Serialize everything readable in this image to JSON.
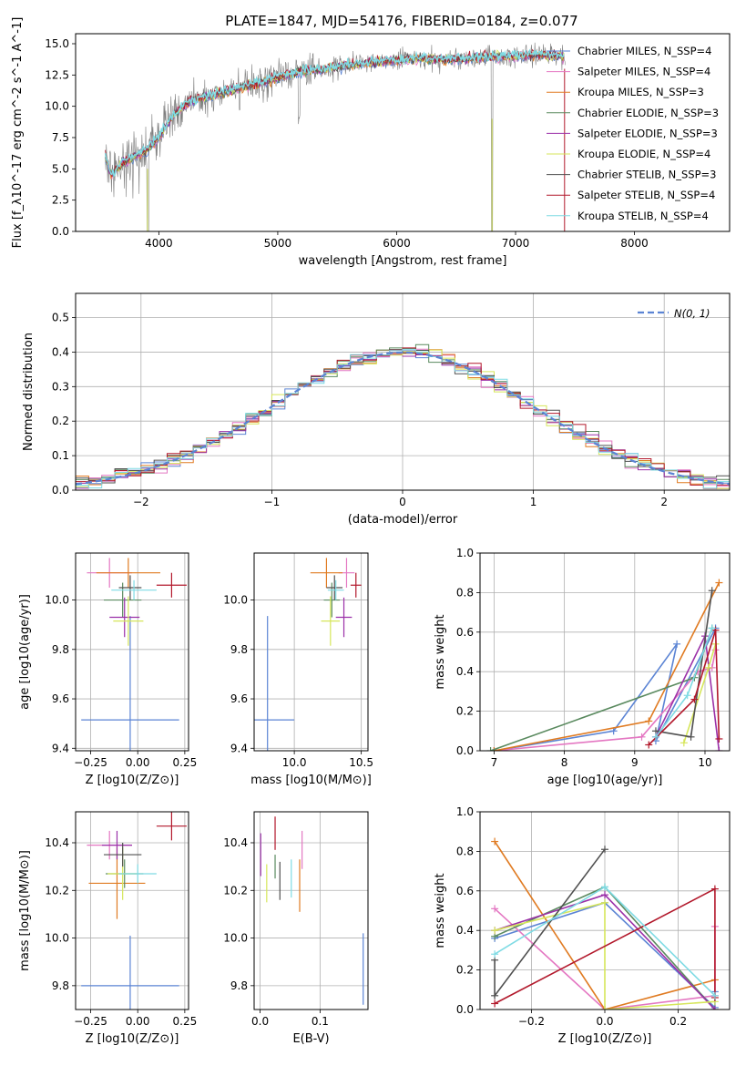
{
  "figure": {
    "title": "PLATE=1847, MJD=54176, FIBERID=0184, z=0.077"
  },
  "chart_data": [
    {
      "id": "spectrum",
      "type": "line",
      "xlabel": "wavelength [Angstrom, rest frame]",
      "ylabel": "Flux [f_λ10^-17 erg cm^-2 s^-1 A^-1]",
      "xlim": [
        3300,
        8800
      ],
      "ylim": [
        0,
        15.8
      ],
      "xticks": [
        4000,
        5000,
        6000,
        7000,
        8000
      ],
      "yticks": [
        0.0,
        2.5,
        5.0,
        7.5,
        10.0,
        12.5,
        15.0
      ],
      "grid": false,
      "legend_position": "top-right",
      "x": [
        3550,
        3600,
        3700,
        3800,
        3900,
        4000,
        4100,
        4200,
        4300,
        4500,
        4700,
        4900,
        5000,
        5200,
        5400,
        5600,
        5800,
        6000,
        6200,
        6400,
        6600,
        6800,
        7000,
        7200,
        7400
      ],
      "y": [
        6.0,
        4.5,
        5.5,
        6.0,
        6.5,
        7.5,
        9.0,
        10.0,
        10.5,
        11.0,
        11.5,
        12.0,
        12.3,
        12.8,
        13.0,
        13.3,
        13.5,
        13.7,
        13.8,
        13.7,
        13.8,
        14.0,
        14.0,
        14.1,
        14.0
      ],
      "series": [
        {
          "name": "Chabrier MILES, N_SSP=4",
          "color": "#5b84d4"
        },
        {
          "name": "Salpeter MILES, N_SSP=4",
          "color": "#e477c2"
        },
        {
          "name": "Kroupa MILES, N_SSP=3",
          "color": "#e07b22"
        },
        {
          "name": "Chabrier ELODIE, N_SSP=3",
          "color": "#5a8a5f"
        },
        {
          "name": "Salpeter ELODIE, N_SSP=3",
          "color": "#9b30a8"
        },
        {
          "name": "Kroupa ELODIE, N_SSP=4",
          "color": "#d6e65a"
        },
        {
          "name": "Chabrier STELIB, N_SSP=3",
          "color": "#505050"
        },
        {
          "name": "Salpeter STELIB, N_SSP=4",
          "color": "#b2182b"
        },
        {
          "name": "Kroupa STELIB, N_SSP=4",
          "color": "#7fdbe4"
        }
      ]
    },
    {
      "id": "residuals",
      "type": "histogram",
      "xlabel": "(data-model)/error",
      "ylabel": "Normed distribution",
      "xlim": [
        -2.5,
        2.5
      ],
      "ylim": [
        0,
        0.57
      ],
      "xticks": [
        -2,
        -1,
        0,
        1,
        2
      ],
      "yticks": [
        0.0,
        0.1,
        0.2,
        0.3,
        0.4,
        0.5
      ],
      "grid": true,
      "legend_position": "top-right",
      "legend": "N(0, 1)",
      "bin_width": 0.1
    },
    {
      "id": "age_vs_Z",
      "type": "scatter",
      "xlabel": "Z [log10(Z/Z⊙)]",
      "ylabel": "age  [log10(age/yr)]",
      "xlim": [
        -0.33,
        0.27
      ],
      "ylim": [
        9.39,
        10.19
      ],
      "xticks": [
        -0.25,
        0.0,
        0.25
      ],
      "yticks": [
        9.4,
        9.6,
        9.8,
        10.0
      ],
      "grid": true,
      "points": [
        {
          "x": -0.04,
          "y": 9.515,
          "xerr": 0.26,
          "yerr": 0.42,
          "color": "#5b84d4"
        },
        {
          "x": -0.15,
          "y": 10.11,
          "xerr": 0.12,
          "yerr": 0.06,
          "color": "#e477c2"
        },
        {
          "x": -0.05,
          "y": 10.11,
          "xerr": 0.17,
          "yerr": 0.06,
          "color": "#e07b22"
        },
        {
          "x": -0.08,
          "y": 10.0,
          "xerr": 0.1,
          "yerr": 0.07,
          "color": "#5a8a5f"
        },
        {
          "x": -0.07,
          "y": 9.93,
          "xerr": 0.08,
          "yerr": 0.08,
          "color": "#9b30a8"
        },
        {
          "x": -0.05,
          "y": 9.915,
          "xerr": 0.08,
          "yerr": 0.1,
          "color": "#d6e65a"
        },
        {
          "x": -0.04,
          "y": 10.05,
          "xerr": 0.06,
          "yerr": 0.05,
          "color": "#505050"
        },
        {
          "x": 0.18,
          "y": 10.06,
          "xerr": 0.08,
          "yerr": 0.05,
          "color": "#b2182b"
        },
        {
          "x": -0.02,
          "y": 10.04,
          "xerr": 0.12,
          "yerr": 0.04,
          "color": "#7fdbe4"
        }
      ]
    },
    {
      "id": "age_vs_mass",
      "type": "scatter",
      "xlabel": "mass [log10(M/M⊙)]",
      "ylabel": "",
      "xlim": [
        9.7,
        10.55
      ],
      "ylim": [
        9.39,
        10.19
      ],
      "xticks": [
        10.0,
        10.5
      ],
      "yticks": [
        9.4,
        9.6,
        9.8,
        10.0
      ],
      "grid": true,
      "points": [
        {
          "x": 9.8,
          "y": 9.515,
          "xerr": 0.2,
          "yerr": 0.42,
          "color": "#5b84d4"
        },
        {
          "x": 10.39,
          "y": 10.11,
          "xerr": 0.06,
          "yerr": 0.06,
          "color": "#e477c2"
        },
        {
          "x": 10.24,
          "y": 10.11,
          "xerr": 0.12,
          "yerr": 0.06,
          "color": "#e07b22"
        },
        {
          "x": 10.28,
          "y": 10.0,
          "xerr": 0.06,
          "yerr": 0.07,
          "color": "#5a8a5f"
        },
        {
          "x": 10.37,
          "y": 9.93,
          "xerr": 0.06,
          "yerr": 0.08,
          "color": "#9b30a8"
        },
        {
          "x": 10.27,
          "y": 9.915,
          "xerr": 0.07,
          "yerr": 0.1,
          "color": "#d6e65a"
        },
        {
          "x": 10.3,
          "y": 10.05,
          "xerr": 0.06,
          "yerr": 0.05,
          "color": "#505050"
        },
        {
          "x": 10.46,
          "y": 10.06,
          "xerr": 0.04,
          "yerr": 0.05,
          "color": "#b2182b"
        },
        {
          "x": 10.31,
          "y": 10.04,
          "xerr": 0.06,
          "yerr": 0.04,
          "color": "#7fdbe4"
        }
      ]
    },
    {
      "id": "weight_vs_age",
      "type": "line",
      "xlabel": "age  [log10(age/yr)]",
      "ylabel": "mass weight",
      "xlim": [
        6.8,
        10.35
      ],
      "ylim": [
        0,
        1.0
      ],
      "xticks": [
        7,
        8,
        9,
        10
      ],
      "yticks": [
        0.0,
        0.2,
        0.4,
        0.6,
        0.8,
        1.0
      ],
      "grid": true,
      "series": [
        {
          "color": "#5b84d4",
          "x": [
            7.0,
            8.7,
            9.6,
            9.3,
            10.15
          ],
          "y": [
            0.0,
            0.1,
            0.54,
            0.05,
            0.62
          ]
        },
        {
          "color": "#e477c2",
          "x": [
            7.0,
            9.1,
            9.9,
            10.1,
            10.15
          ],
          "y": [
            0.0,
            0.07,
            0.4,
            0.42,
            0.51
          ]
        },
        {
          "color": "#e07b22",
          "x": [
            7.0,
            9.2,
            10.2
          ],
          "y": [
            0.0,
            0.15,
            0.85
          ]
        },
        {
          "color": "#5a8a5f",
          "x": [
            6.95,
            9.85,
            10.1
          ],
          "y": [
            0.0,
            0.37,
            0.62
          ]
        },
        {
          "color": "#9b30a8",
          "x": [
            9.3,
            10.0,
            10.2
          ],
          "y": [
            0.07,
            0.58,
            0.0
          ]
        },
        {
          "color": "#d6e65a",
          "x": [
            9.7,
            10.05,
            10.15
          ],
          "y": [
            0.04,
            0.42,
            0.54
          ]
        },
        {
          "color": "#505050",
          "x": [
            9.3,
            9.8,
            10.1
          ],
          "y": [
            0.1,
            0.07,
            0.81
          ]
        },
        {
          "color": "#b2182b",
          "x": [
            9.2,
            9.85,
            10.15,
            10.2
          ],
          "y": [
            0.03,
            0.26,
            0.61,
            0.06
          ]
        },
        {
          "color": "#7fdbe4",
          "x": [
            9.3,
            9.75,
            10.1
          ],
          "y": [
            0.07,
            0.28,
            0.62
          ]
        }
      ]
    },
    {
      "id": "mass_vs_Z",
      "type": "scatter",
      "xlabel": "Z [log10(Z/Z⊙)]",
      "ylabel": "mass [log10(M/M⊙)]",
      "xlim": [
        -0.33,
        0.27
      ],
      "ylim": [
        9.7,
        10.53
      ],
      "xticks": [
        -0.25,
        0.0,
        0.25
      ],
      "yticks": [
        9.8,
        10.0,
        10.2,
        10.4
      ],
      "grid": true,
      "points": [
        {
          "x": -0.04,
          "y": 9.8,
          "xerr": 0.26,
          "yerr": 0.21,
          "color": "#5b84d4"
        },
        {
          "x": -0.15,
          "y": 10.39,
          "xerr": 0.12,
          "yerr": 0.06,
          "color": "#e477c2"
        },
        {
          "x": -0.11,
          "y": 10.23,
          "xerr": 0.15,
          "yerr": 0.15,
          "color": "#e07b22"
        },
        {
          "x": -0.07,
          "y": 10.27,
          "xerr": 0.1,
          "yerr": 0.06,
          "color": "#5a8a5f"
        },
        {
          "x": -0.11,
          "y": 10.39,
          "xerr": 0.08,
          "yerr": 0.06,
          "color": "#9b30a8"
        },
        {
          "x": -0.08,
          "y": 10.27,
          "xerr": 0.08,
          "yerr": 0.11,
          "color": "#d6e65a"
        },
        {
          "x": -0.08,
          "y": 10.35,
          "xerr": 0.1,
          "yerr": 0.05,
          "color": "#505050"
        },
        {
          "x": 0.18,
          "y": 10.47,
          "xerr": 0.08,
          "yerr": 0.06,
          "color": "#b2182b"
        },
        {
          "x": 0.0,
          "y": 10.27,
          "xerr": 0.1,
          "yerr": 0.04,
          "color": "#7fdbe4"
        }
      ]
    },
    {
      "id": "mass_vs_ebv",
      "type": "scatter",
      "xlabel": "E(B-V)",
      "ylabel": "",
      "xlim": [
        -0.01,
        0.18
      ],
      "ylim": [
        9.7,
        10.53
      ],
      "xticks": [
        0.0,
        0.1
      ],
      "yticks": [
        9.8,
        10.0,
        10.2,
        10.4
      ],
      "grid": true,
      "points": [
        {
          "x": 0.172,
          "y": 9.87,
          "yerr": 0.15,
          "color": "#5b84d4"
        },
        {
          "x": 0.07,
          "y": 10.37,
          "yerr": 0.08,
          "color": "#e477c2"
        },
        {
          "x": 0.066,
          "y": 10.22,
          "yerr": 0.11,
          "color": "#e07b22"
        },
        {
          "x": 0.025,
          "y": 10.3,
          "yerr": 0.05,
          "color": "#5a8a5f"
        },
        {
          "x": 0.001,
          "y": 10.35,
          "yerr": 0.09,
          "color": "#9b30a8"
        },
        {
          "x": 0.011,
          "y": 10.23,
          "yerr": 0.08,
          "color": "#d6e65a"
        },
        {
          "x": 0.033,
          "y": 10.24,
          "yerr": 0.08,
          "color": "#505050"
        },
        {
          "x": 0.025,
          "y": 10.44,
          "yerr": 0.07,
          "color": "#b2182b"
        },
        {
          "x": 0.052,
          "y": 10.25,
          "yerr": 0.08,
          "color": "#7fdbe4"
        }
      ]
    },
    {
      "id": "weight_vs_Z",
      "type": "line",
      "xlabel": "Z [log10(Z/Z⊙)]",
      "ylabel": "mass weight",
      "xlim": [
        -0.34,
        0.34
      ],
      "ylim": [
        0,
        1.0
      ],
      "xticks": [
        -0.2,
        0.0,
        0.2
      ],
      "yticks": [
        0.0,
        0.2,
        0.4,
        0.6,
        0.8,
        1.0
      ],
      "grid": true,
      "series": [
        {
          "color": "#5b84d4",
          "x": [
            -0.3,
            0.0,
            0.3,
            0.3
          ],
          "y": [
            0.36,
            0.54,
            0.01,
            0.09
          ]
        },
        {
          "color": "#e477c2",
          "x": [
            -0.3,
            0.0,
            0.3,
            0.3
          ],
          "y": [
            0.51,
            0.0,
            0.07,
            0.42
          ]
        },
        {
          "color": "#e07b22",
          "x": [
            -0.3,
            0.0,
            0.3
          ],
          "y": [
            0.85,
            0.0,
            0.15
          ]
        },
        {
          "color": "#5a8a5f",
          "x": [
            -0.3,
            0.0,
            0.3
          ],
          "y": [
            0.37,
            0.62,
            0.0
          ]
        },
        {
          "color": "#9b30a8",
          "x": [
            -0.3,
            0.0,
            0.3
          ],
          "y": [
            0.4,
            0.58,
            0.0
          ]
        },
        {
          "color": "#d6e65a",
          "x": [
            -0.3,
            0.0,
            0.0,
            0.3
          ],
          "y": [
            0.4,
            0.54,
            0.0,
            0.04
          ]
        },
        {
          "color": "#505050",
          "x": [
            -0.3,
            -0.3,
            0.0
          ],
          "y": [
            0.25,
            0.07,
            0.81
          ]
        },
        {
          "color": "#b2182b",
          "x": [
            -0.3,
            0.3,
            0.3
          ],
          "y": [
            0.03,
            0.61,
            0.06
          ]
        },
        {
          "color": "#7fdbe4",
          "x": [
            -0.3,
            0.0,
            0.3
          ],
          "y": [
            0.28,
            0.62,
            0.07
          ]
        }
      ]
    }
  ]
}
